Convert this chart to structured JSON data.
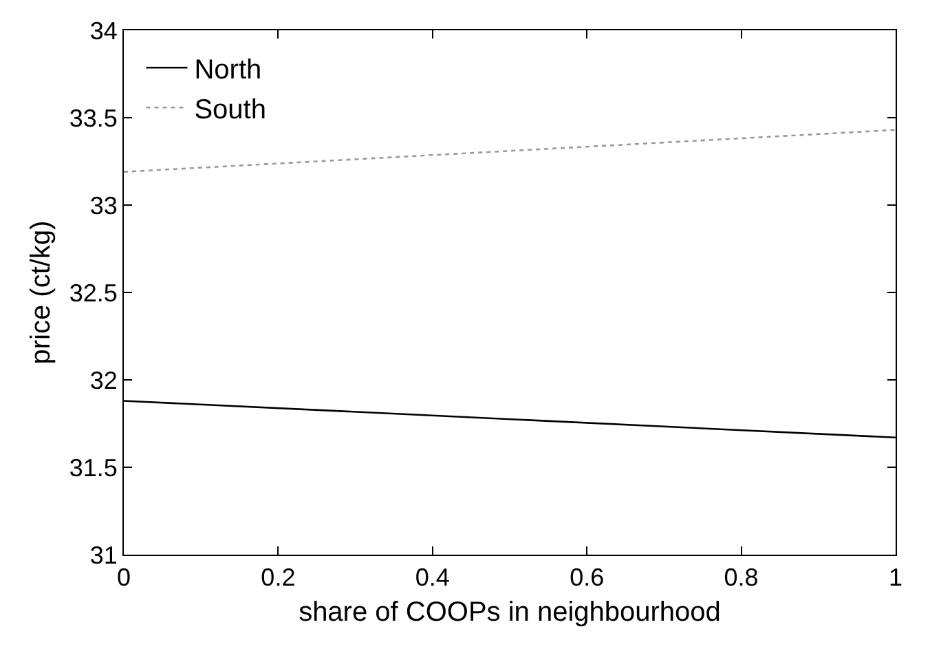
{
  "chart_data": {
    "type": "line",
    "xlabel": "share of COOPs in neighbourhood",
    "ylabel": "price (ct/kg)",
    "x": [
      0,
      1
    ],
    "series": [
      {
        "name": "North",
        "color": "#000000",
        "values": [
          31.88,
          31.67
        ],
        "line_style": "solid"
      },
      {
        "name": "South",
        "color": "#999999",
        "values": [
          33.19,
          33.43
        ],
        "line_style": "dotted"
      }
    ],
    "xlim": [
      0,
      1
    ],
    "xticks": [
      0,
      0.2,
      0.4,
      0.6,
      0.8,
      1
    ],
    "ylim": [
      31,
      34
    ],
    "yticks": [
      31,
      31.5,
      32,
      32.5,
      33,
      33.5,
      34
    ],
    "legend": "top left",
    "marker": "none"
  }
}
